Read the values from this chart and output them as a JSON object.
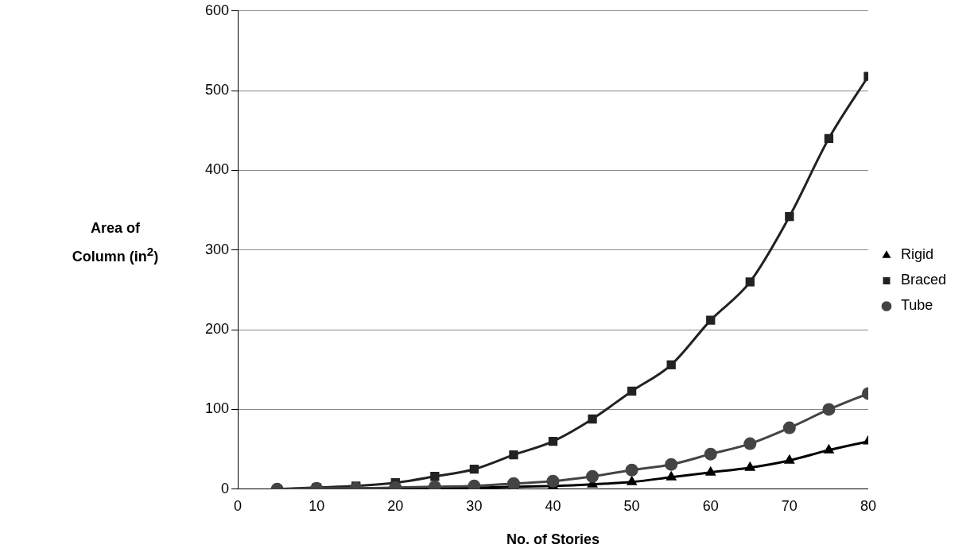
{
  "chart_data": {
    "type": "line",
    "xlabel": "No. of Stories",
    "ylabel": "Area of Column (in$^{2}$)",
    "x": [
      5,
      10,
      15,
      20,
      25,
      30,
      35,
      40,
      45,
      50,
      55,
      60,
      65,
      70,
      75,
      80
    ],
    "series": [
      {
        "name": "Rigid",
        "color": "#000000",
        "marker": "triangle",
        "values": [
          0,
          0,
          1,
          1,
          2,
          2,
          3,
          4,
          6,
          9,
          15,
          21,
          27,
          36,
          49,
          60
        ]
      },
      {
        "name": "Braced",
        "color": "#222222",
        "marker": "square",
        "values": [
          0,
          2,
          4,
          8,
          16,
          25,
          43,
          60,
          88,
          123,
          156,
          212,
          260,
          342,
          440,
          518
        ]
      },
      {
        "name": "Tube",
        "color": "#444444",
        "marker": "circle",
        "values": [
          0,
          1,
          1,
          2,
          3,
          4,
          7,
          10,
          16,
          24,
          31,
          44,
          57,
          77,
          100,
          120
        ]
      }
    ],
    "xlim": [
      0,
      80
    ],
    "xticks": [
      0,
      10,
      20,
      30,
      40,
      50,
      60,
      70,
      80
    ],
    "ylim": [
      0,
      600
    ],
    "yticks": [
      0,
      100,
      200,
      300,
      400,
      500,
      600
    ],
    "grid": "y",
    "legend": "right",
    "line_style": "solid"
  }
}
